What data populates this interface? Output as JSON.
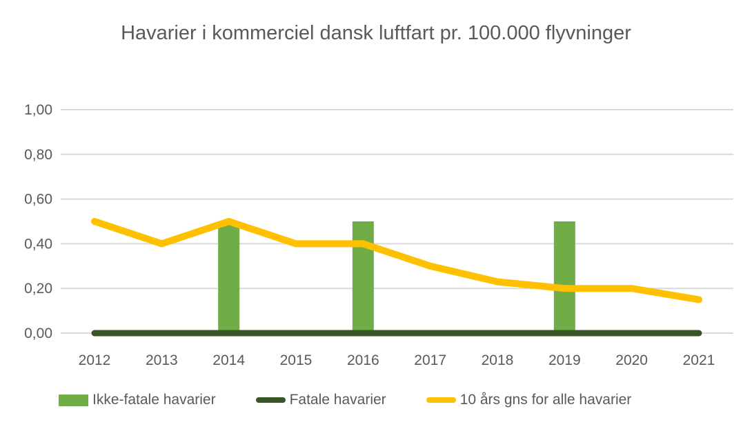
{
  "chart_data": {
    "type": "combo",
    "title": "Havarier i kommerciel dansk luftfart pr. 100.000 flyvninger",
    "categories": [
      "2012",
      "2013",
      "2014",
      "2015",
      "2016",
      "2017",
      "2018",
      "2019",
      "2020",
      "2021"
    ],
    "series": [
      {
        "name": "Ikke-fatale havarier",
        "type": "bar",
        "color": "#70AD47",
        "values": [
          0,
          0,
          0.5,
          0,
          0.5,
          0,
          0,
          0.5,
          0,
          0
        ]
      },
      {
        "name": "Fatale havarier",
        "type": "line",
        "color": "#375623",
        "values": [
          0,
          0,
          0,
          0,
          0,
          0,
          0,
          0,
          0,
          0
        ]
      },
      {
        "name": "10 års gns for alle havarier",
        "type": "line",
        "color": "#FFC000",
        "values": [
          0.5,
          0.4,
          0.5,
          0.4,
          0.4,
          0.3,
          0.23,
          0.2,
          0.2,
          0.15
        ]
      }
    ],
    "ylim": [
      0,
      1.0
    ],
    "y_ticks": [
      "0,00",
      "0,20",
      "0,40",
      "0,60",
      "0,80",
      "1,00"
    ],
    "xlabel": "",
    "ylabel": "",
    "grid": true,
    "legend_position": "bottom",
    "colors": {
      "gridline": "#D9D9D9",
      "axis_text": "#595959",
      "title_text": "#595959",
      "background": "#FFFFFF"
    }
  }
}
